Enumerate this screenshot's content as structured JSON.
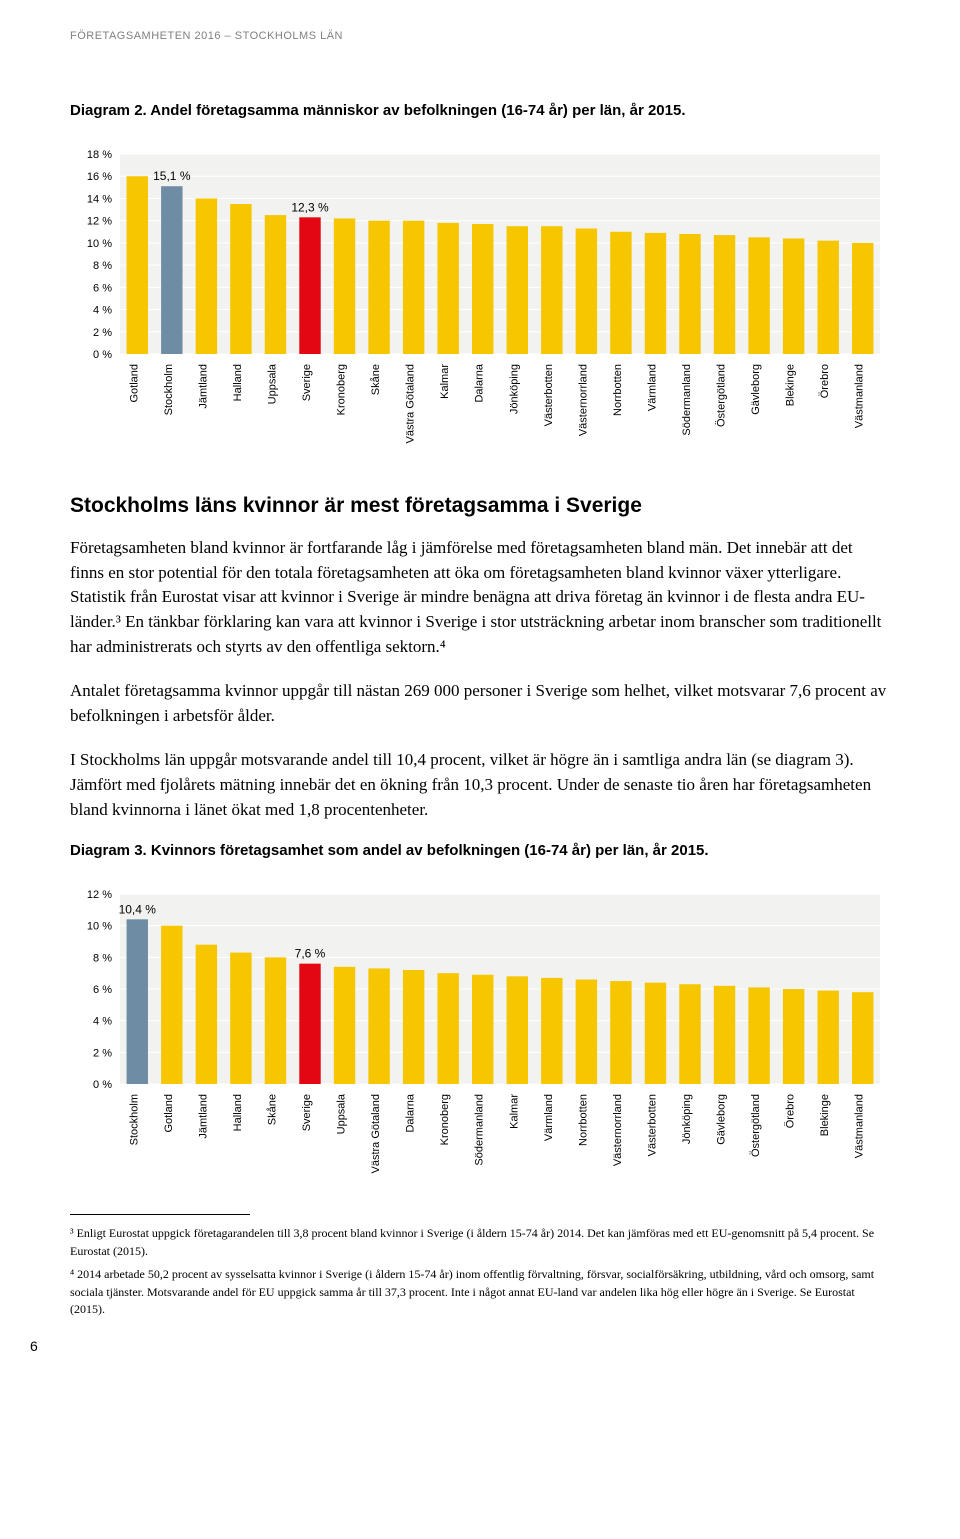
{
  "header": "FÖRETAGSAMHETEN 2016 – STOCKHOLMS LÄN",
  "page_number": "6",
  "chart2": {
    "type": "bar",
    "title": "Diagram 2. Andel företagsamma människor av befolkningen (16-74 år) per län, år 2015.",
    "ylim": [
      0,
      18
    ],
    "ytick_step": 2,
    "ytick_suffix": " %",
    "background_color": "#f2f2f0",
    "grid_color": "#ffffff",
    "axis_fontsize": 11,
    "label_fontsize": 11,
    "bar_default_color": "#f6c600",
    "bar_highlight1_color": "#6f8ca5",
    "bar_highlight2_color": "#e30613",
    "callouts": [
      {
        "index": 1,
        "text": "15,1 %"
      },
      {
        "index": 5,
        "text": "12,3 %"
      }
    ],
    "categories": [
      "Gotland",
      "Stockholm",
      "Jämtland",
      "Halland",
      "Uppsala",
      "Sverige",
      "Kronoberg",
      "Skåne",
      "Västra Götaland",
      "Kalmar",
      "Dalarna",
      "Jönköping",
      "Västerbotten",
      "Västernorrland",
      "Norrbotten",
      "Värmland",
      "Södermanland",
      "Östergötland",
      "Gävleborg",
      "Blekinge",
      "Örebro",
      "Västmanland"
    ],
    "values": [
      16.0,
      15.1,
      14.0,
      13.5,
      12.5,
      12.3,
      12.2,
      12.0,
      12.0,
      11.8,
      11.7,
      11.5,
      11.5,
      11.3,
      11.0,
      10.9,
      10.8,
      10.7,
      10.5,
      10.4,
      10.2,
      10.0
    ],
    "highlight_indices": {
      "1": "#6f8ca5",
      "5": "#e30613"
    }
  },
  "section_heading": "Stockholms läns kvinnor är mest företagsamma i Sverige",
  "paragraphs": [
    "Företagsamheten bland kvinnor är fortfarande låg i jämförelse med företagsamheten bland män. Det innebär att det finns en stor potential för den totala företagsamheten att öka om företagsamheten bland kvinnor växer ytterligare. Statistik från Eurostat visar att kvinnor i Sverige är mindre benägna att driva företag än kvinnor i de flesta andra EU-länder.³ En tänkbar förklaring kan vara att kvinnor i Sverige i stor utsträckning arbetar inom branscher som traditionellt har administrerats och styrts av den offentliga sektorn.⁴",
    "Antalet företagsamma kvinnor uppgår till nästan 269 000 personer i Sverige som helhet, vilket motsvarar 7,6 procent av befolkningen i arbetsför ålder.",
    "I Stockholms län uppgår motsvarande andel till 10,4 procent, vilket är högre än i samtliga andra län (se diagram 3). Jämfört med fjolårets mätning innebär det en ökning från 10,3 procent. Under de senaste tio åren har företagsamheten bland kvinnorna i länet ökat med 1,8 procentenheter."
  ],
  "chart3": {
    "type": "bar",
    "title": "Diagram 3. Kvinnors företagsamhet som andel av befolkningen (16-74 år) per län, år 2015.",
    "ylim": [
      0,
      12
    ],
    "ytick_step": 2,
    "ytick_suffix": " %",
    "background_color": "#f2f2f0",
    "grid_color": "#ffffff",
    "axis_fontsize": 11,
    "label_fontsize": 11,
    "bar_default_color": "#f6c600",
    "bar_highlight1_color": "#6f8ca5",
    "bar_highlight2_color": "#e30613",
    "callouts": [
      {
        "index": 0,
        "text": "10,4 %"
      },
      {
        "index": 5,
        "text": "7,6 %"
      }
    ],
    "categories": [
      "Stockholm",
      "Gotland",
      "Jämtland",
      "Halland",
      "Skåne",
      "Sverige",
      "Uppsala",
      "Västra Götaland",
      "Dalarna",
      "Kronoberg",
      "Södermanland",
      "Kalmar",
      "Värmland",
      "Norrbotten",
      "Västernorrland",
      "Västerbotten",
      "Jönköping",
      "Gävleborg",
      "Östergötland",
      "Örebro",
      "Blekinge",
      "Västmanland"
    ],
    "values": [
      10.4,
      10.0,
      8.8,
      8.3,
      8.0,
      7.6,
      7.4,
      7.3,
      7.2,
      7.0,
      6.9,
      6.8,
      6.7,
      6.6,
      6.5,
      6.4,
      6.3,
      6.2,
      6.1,
      6.0,
      5.9,
      5.8
    ],
    "highlight_indices": {
      "0": "#6f8ca5",
      "5": "#e30613"
    }
  },
  "footnotes": [
    "³ Enligt Eurostat uppgick företagarandelen till 3,8 procent bland kvinnor i Sverige (i åldern 15-74 år) 2014. Det kan jämföras med ett EU-genomsnitt på 5,4 procent. Se Eurostat (2015).",
    "⁴ 2014 arbetade 50,2 procent av sysselsatta kvinnor i Sverige (i åldern 15-74 år) inom offentlig förvaltning, försvar, socialförsäkring, utbildning, vård och omsorg, samt sociala tjänster. Motsvarande andel för EU uppgick samma år till 37,3 procent. Inte i något annat EU-land var andelen lika hög eller högre än i Sverige. Se Eurostat (2015)."
  ]
}
